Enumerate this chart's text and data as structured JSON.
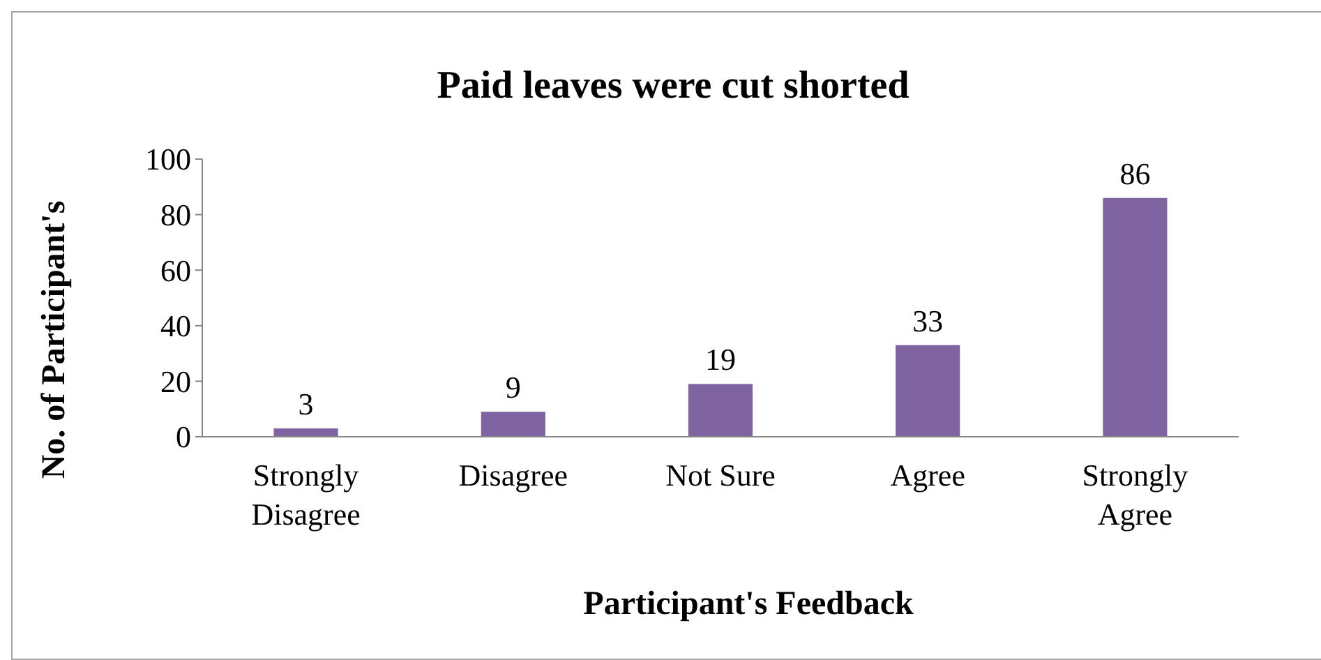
{
  "chart_data": {
    "type": "bar",
    "title": "Paid leaves were cut shorted",
    "xlabel": "Participant's Feedback",
    "ylabel": "No. of Participant's",
    "categories": [
      "Strongly Disagree",
      "Disagree",
      "Not Sure",
      "Agree",
      "Strongly Agree"
    ],
    "values": [
      3,
      9,
      19,
      33,
      86
    ],
    "color": "#8064a2",
    "ylim": [
      0,
      100
    ],
    "yticks": [
      0,
      20,
      40,
      60,
      80,
      100
    ],
    "data_labels": true,
    "grid": false
  }
}
